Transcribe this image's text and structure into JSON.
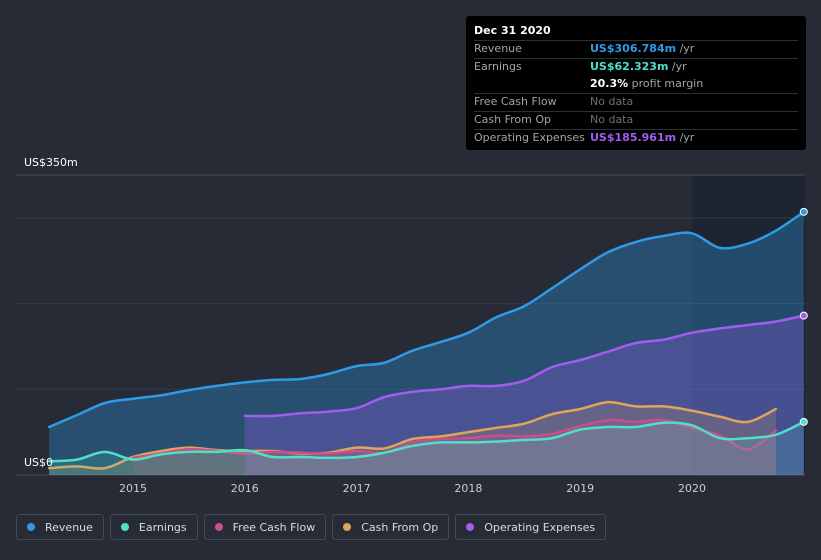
{
  "chart_data": {
    "type": "area",
    "unit": "US$",
    "y_axis": {
      "top_label": "US$350m",
      "bottom_label": "US$0",
      "ylim": [
        0,
        350
      ]
    },
    "x_axis": {
      "ticks": [
        "2015",
        "2016",
        "2017",
        "2018",
        "2019",
        "2020"
      ]
    },
    "series": [
      {
        "name": "Revenue",
        "color": "#2f9be8",
        "points": [
          [
            2014.25,
            56
          ],
          [
            2014.5,
            70
          ],
          [
            2014.75,
            84
          ],
          [
            2015.0,
            89
          ],
          [
            2015.25,
            93
          ],
          [
            2015.5,
            99
          ],
          [
            2015.75,
            104
          ],
          [
            2016.0,
            108
          ],
          [
            2016.25,
            111
          ],
          [
            2016.5,
            112
          ],
          [
            2016.75,
            118
          ],
          [
            2017.0,
            127
          ],
          [
            2017.25,
            131
          ],
          [
            2017.5,
            145
          ],
          [
            2017.75,
            155
          ],
          [
            2018.0,
            166
          ],
          [
            2018.25,
            184
          ],
          [
            2018.5,
            197
          ],
          [
            2018.75,
            218
          ],
          [
            2019.0,
            240
          ],
          [
            2019.25,
            260
          ],
          [
            2019.5,
            272
          ],
          [
            2019.75,
            279
          ],
          [
            2020.0,
            282
          ],
          [
            2020.25,
            265
          ],
          [
            2020.5,
            270
          ],
          [
            2020.75,
            285
          ],
          [
            2021.0,
            307
          ]
        ]
      },
      {
        "name": "Operating Expenses",
        "color": "#a35cf0",
        "points": [
          [
            2016.0,
            69
          ],
          [
            2016.25,
            69
          ],
          [
            2016.5,
            72
          ],
          [
            2016.75,
            74
          ],
          [
            2017.0,
            78
          ],
          [
            2017.25,
            91
          ],
          [
            2017.5,
            97
          ],
          [
            2017.75,
            100
          ],
          [
            2018.0,
            104
          ],
          [
            2018.25,
            104
          ],
          [
            2018.5,
            110
          ],
          [
            2018.75,
            126
          ],
          [
            2019.0,
            134
          ],
          [
            2019.25,
            144
          ],
          [
            2019.5,
            154
          ],
          [
            2019.75,
            158
          ],
          [
            2020.0,
            166
          ],
          [
            2020.25,
            171
          ],
          [
            2020.5,
            175
          ],
          [
            2020.75,
            179
          ],
          [
            2021.0,
            186
          ]
        ]
      },
      {
        "name": "Cash From Op",
        "color": "#e0a45a",
        "points": [
          [
            2014.25,
            8
          ],
          [
            2014.5,
            10
          ],
          [
            2014.75,
            8
          ],
          [
            2015.0,
            21
          ],
          [
            2015.25,
            28
          ],
          [
            2015.5,
            32
          ],
          [
            2015.75,
            29
          ],
          [
            2016.0,
            28
          ],
          [
            2016.25,
            28
          ],
          [
            2016.5,
            25
          ],
          [
            2016.75,
            26
          ],
          [
            2017.0,
            32
          ],
          [
            2017.25,
            31
          ],
          [
            2017.5,
            42
          ],
          [
            2017.75,
            45
          ],
          [
            2018.0,
            50
          ],
          [
            2018.25,
            55
          ],
          [
            2018.5,
            60
          ],
          [
            2018.75,
            71
          ],
          [
            2019.0,
            77
          ],
          [
            2019.25,
            85
          ],
          [
            2019.5,
            80
          ],
          [
            2019.75,
            80
          ],
          [
            2020.0,
            75
          ],
          [
            2020.25,
            68
          ],
          [
            2020.5,
            62
          ],
          [
            2020.75,
            77
          ]
        ]
      },
      {
        "name": "Free Cash Flow",
        "color": "#c84f8a",
        "points": [
          [
            2015.0,
            20
          ],
          [
            2015.25,
            25
          ],
          [
            2015.5,
            30
          ],
          [
            2015.75,
            28
          ],
          [
            2016.0,
            25
          ],
          [
            2016.25,
            27
          ],
          [
            2016.5,
            26
          ],
          [
            2016.75,
            25
          ],
          [
            2017.0,
            28
          ],
          [
            2017.25,
            26
          ],
          [
            2017.5,
            38
          ],
          [
            2017.75,
            42
          ],
          [
            2018.0,
            43
          ],
          [
            2018.25,
            46
          ],
          [
            2018.5,
            45
          ],
          [
            2018.75,
            48
          ],
          [
            2019.0,
            57
          ],
          [
            2019.25,
            64
          ],
          [
            2019.5,
            62
          ],
          [
            2019.75,
            64
          ],
          [
            2020.0,
            55
          ],
          [
            2020.25,
            46
          ],
          [
            2020.5,
            30
          ],
          [
            2020.75,
            52
          ]
        ]
      },
      {
        "name": "Earnings",
        "color": "#4fe0c8",
        "points": [
          [
            2014.25,
            16
          ],
          [
            2014.5,
            18
          ],
          [
            2014.75,
            27
          ],
          [
            2015.0,
            18
          ],
          [
            2015.25,
            24
          ],
          [
            2015.5,
            27
          ],
          [
            2015.75,
            27
          ],
          [
            2016.0,
            29
          ],
          [
            2016.25,
            21
          ],
          [
            2016.5,
            21
          ],
          [
            2016.75,
            20
          ],
          [
            2017.0,
            21
          ],
          [
            2017.25,
            26
          ],
          [
            2017.5,
            34
          ],
          [
            2017.75,
            38
          ],
          [
            2018.0,
            38
          ],
          [
            2018.25,
            39
          ],
          [
            2018.5,
            41
          ],
          [
            2018.75,
            43
          ],
          [
            2019.0,
            53
          ],
          [
            2019.25,
            56
          ],
          [
            2019.5,
            56
          ],
          [
            2019.75,
            61
          ],
          [
            2020.0,
            58
          ],
          [
            2020.25,
            43
          ],
          [
            2020.5,
            43
          ],
          [
            2020.75,
            47
          ],
          [
            2021.0,
            62
          ]
        ]
      }
    ]
  },
  "tooltip": {
    "date": "Dec 31 2020",
    "rows": [
      {
        "label": "Revenue",
        "value": "US$306.784m",
        "unit": "/yr"
      },
      {
        "label": "Earnings",
        "value": "US$62.323m",
        "unit": "/yr"
      },
      {
        "margin_value": "20.3%",
        "margin_label": "profit margin"
      },
      {
        "label": "Free Cash Flow",
        "value": "No data"
      },
      {
        "label": "Cash From Op",
        "value": "No data"
      },
      {
        "label": "Operating Expenses",
        "value": "US$185.961m",
        "unit": "/yr"
      }
    ]
  },
  "legend": [
    {
      "label": "Revenue",
      "color": "#2f9be8"
    },
    {
      "label": "Earnings",
      "color": "#4fe0c8"
    },
    {
      "label": "Free Cash Flow",
      "color": "#c84f8a"
    },
    {
      "label": "Cash From Op",
      "color": "#e0a45a"
    },
    {
      "label": "Operating Expenses",
      "color": "#a35cf0"
    }
  ]
}
